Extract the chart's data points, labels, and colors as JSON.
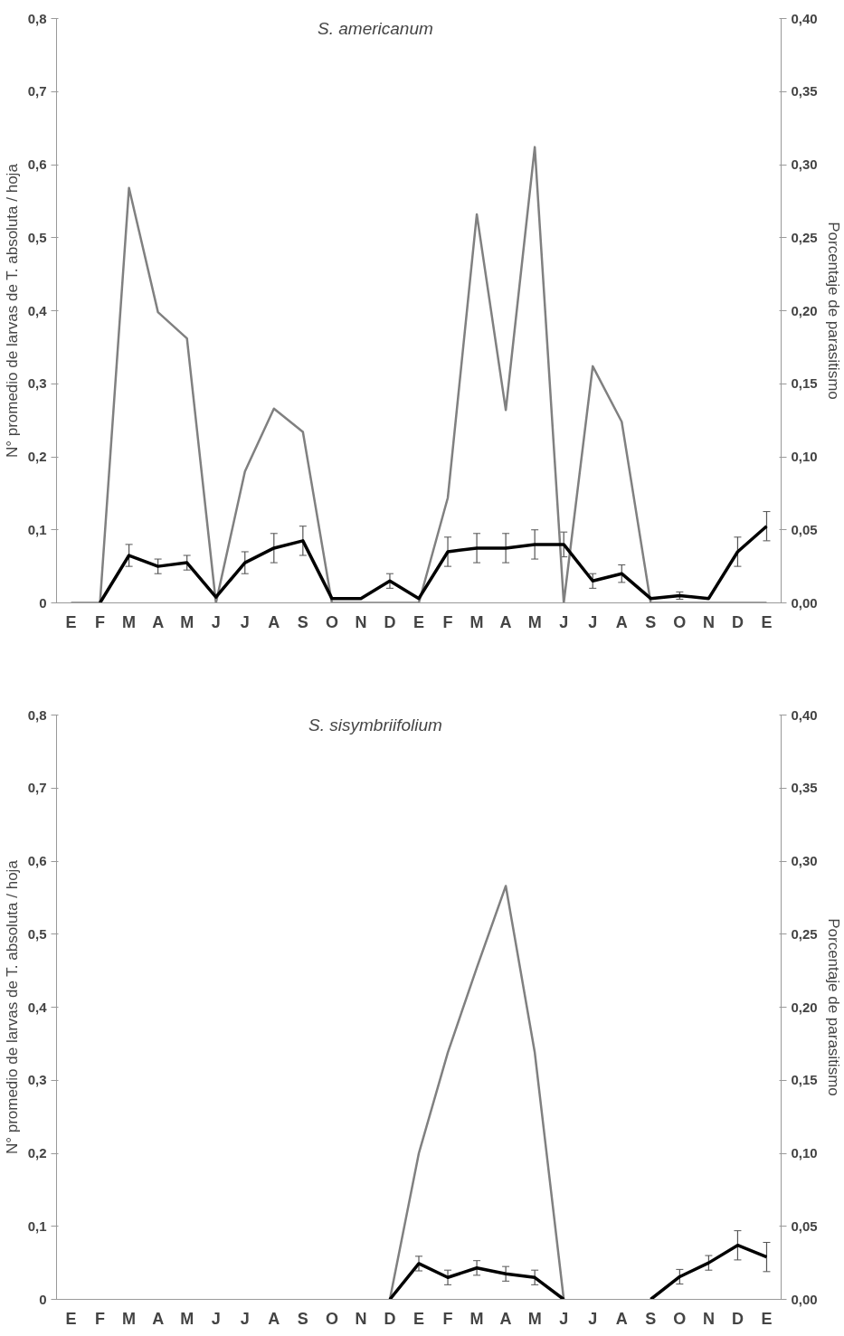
{
  "chart_data": [
    {
      "type": "line",
      "title": "S. americanum",
      "ylabel": "N° promedio de larvas de T. absoluta / hoja",
      "y2label": "Porcentaje de parasitismo",
      "categories": [
        "E",
        "F",
        "M",
        "A",
        "M",
        "J",
        "J",
        "A",
        "S",
        "O",
        "N",
        "D",
        "E",
        "F",
        "M",
        "A",
        "M",
        "J",
        "J",
        "A",
        "S",
        "O",
        "N",
        "D",
        "E"
      ],
      "series": [
        {
          "color": "#808080",
          "axis": "y2",
          "values": [
            0,
            0,
            0.284,
            0.199,
            0.181,
            0,
            0.09,
            0.133,
            0.117,
            0,
            0,
            0,
            0,
            0.072,
            0.266,
            0.132,
            0.312,
            0,
            0.162,
            0.124,
            0,
            0,
            0,
            0,
            0
          ]
        },
        {
          "color": "#000000",
          "values": [
            null,
            0,
            0.065,
            0.05,
            0.055,
            0.008,
            0.055,
            0.075,
            0.085,
            0.006,
            0.006,
            0.03,
            0.006,
            0.07,
            0.075,
            0.075,
            0.08,
            0.08,
            0.03,
            0.04,
            0.006,
            0.01,
            0.006,
            0.07,
            0.105
          ],
          "errors": [
            null,
            null,
            0.015,
            0.01,
            0.01,
            null,
            0.015,
            0.02,
            0.02,
            null,
            null,
            0.01,
            null,
            0.02,
            0.02,
            0.02,
            0.02,
            0.017,
            0.01,
            0.012,
            null,
            0.005,
            null,
            0.02,
            0.02
          ]
        }
      ],
      "ylim": [
        0,
        0.8
      ],
      "yticks": [
        0,
        {
          "value": 0.1,
          "label": "0,1"
        },
        {
          "value": 0.2,
          "label": "0,2"
        },
        {
          "value": 0.3,
          "label": "0,3"
        },
        {
          "value": 0.4,
          "label": "0,4"
        },
        {
          "value": 0.5,
          "label": "0,5"
        },
        {
          "value": 0.6,
          "label": "0,6"
        },
        {
          "value": 0.7,
          "label": "0,7"
        },
        {
          "value": 0.8,
          "label": "0,8"
        }
      ],
      "y2lim": [
        0,
        0.4
      ],
      "y2ticks": [
        {
          "value": 0,
          "label": "0,00"
        },
        {
          "value": 0.05,
          "label": "0,05"
        },
        {
          "value": 0.1,
          "label": "0,10"
        },
        {
          "value": 0.15,
          "label": "0,15"
        },
        {
          "value": 0.2,
          "label": "0,20"
        },
        {
          "value": 0.25,
          "label": "0,25"
        },
        {
          "value": 0.3,
          "label": "0,30"
        },
        {
          "value": 0.35,
          "label": "0,35"
        },
        {
          "value": 0.4,
          "label": "0,40"
        }
      ],
      "grid": false
    },
    {
      "type": "line",
      "title": "S. sisymbriifolium",
      "ylabel": "N° promedio de larvas de T. absoluta / hoja",
      "y2label": "Porcentaje de parasitismo",
      "categories": [
        "E",
        "F",
        "M",
        "A",
        "M",
        "J",
        "J",
        "A",
        "S",
        "O",
        "N",
        "D",
        "E",
        "F",
        "M",
        "A",
        "M",
        "J",
        "J",
        "A",
        "S",
        "O",
        "N",
        "D",
        "E"
      ],
      "series": [
        {
          "color": "#808080",
          "axis": "y2",
          "values": [
            null,
            null,
            null,
            null,
            null,
            null,
            null,
            null,
            null,
            null,
            null,
            0,
            0.1,
            0.169,
            0.227,
            0.283,
            0.169,
            0,
            null,
            null,
            null,
            null,
            null,
            null,
            null
          ]
        },
        {
          "color": "#000000",
          "values": [
            null,
            null,
            null,
            null,
            null,
            null,
            null,
            null,
            null,
            null,
            null,
            0,
            0.049,
            0.03,
            0.043,
            0.035,
            0.03,
            0,
            null,
            null,
            0,
            0.031,
            0.05,
            0.074,
            0.058
          ],
          "errors": [
            null,
            null,
            null,
            null,
            null,
            null,
            null,
            null,
            null,
            null,
            null,
            null,
            0.01,
            0.01,
            0.01,
            0.01,
            0.01,
            null,
            null,
            null,
            null,
            0.01,
            0.01,
            0.02,
            0.02
          ]
        }
      ],
      "ylim": [
        0,
        0.8
      ],
      "yticks": [
        0,
        {
          "value": 0.1,
          "label": "0,1"
        },
        {
          "value": 0.2,
          "label": "0,2"
        },
        {
          "value": 0.3,
          "label": "0,3"
        },
        {
          "value": 0.4,
          "label": "0,4"
        },
        {
          "value": 0.5,
          "label": "0,5"
        },
        {
          "value": 0.6,
          "label": "0,6"
        },
        {
          "value": 0.7,
          "label": "0,7"
        },
        {
          "value": 0.8,
          "label": "0,8"
        }
      ],
      "y2lim": [
        0,
        0.4
      ],
      "y2ticks": [
        {
          "value": 0,
          "label": "0,00"
        },
        {
          "value": 0.05,
          "label": "0,05"
        },
        {
          "value": 0.1,
          "label": "0,10"
        },
        {
          "value": 0.15,
          "label": "0,15"
        },
        {
          "value": 0.2,
          "label": "0,20"
        },
        {
          "value": 0.25,
          "label": "0,25"
        },
        {
          "value": 0.3,
          "label": "0,30"
        },
        {
          "value": 0.35,
          "label": "0,35"
        },
        {
          "value": 0.4,
          "label": "0,40"
        }
      ],
      "grid": false
    }
  ]
}
